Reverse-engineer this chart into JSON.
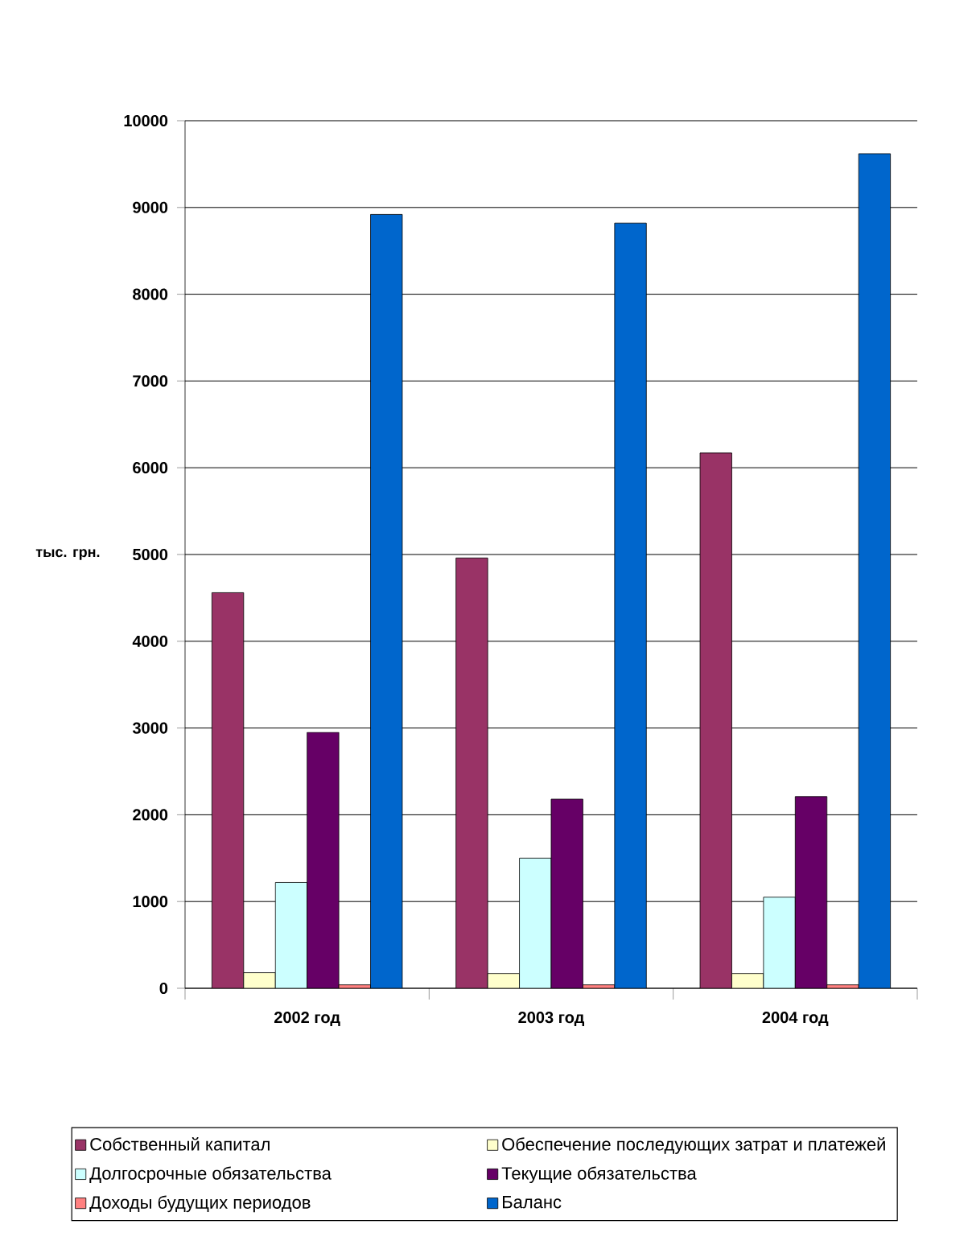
{
  "chart_data": {
    "type": "bar",
    "ylabel": "тыс. грн.",
    "categories": [
      "2002 год",
      "2003 год",
      "2004 год"
    ],
    "series": [
      {
        "name": "Собственный капитал",
        "color": "#993366",
        "values": [
          4560,
          4960,
          6170
        ]
      },
      {
        "name": "Обеспечение последующих затрат и платежей",
        "color": "#FFFFCC",
        "values": [
          180,
          170,
          170
        ]
      },
      {
        "name": "Долгосрочные обязательства",
        "color": "#CCFFFF",
        "values": [
          1220,
          1500,
          1050
        ]
      },
      {
        "name": "Текущие обязательства",
        "color": "#660066",
        "values": [
          2950,
          2180,
          2210
        ]
      },
      {
        "name": "Доходы будущих периодов",
        "color": "#FF8080",
        "values": [
          40,
          40,
          40
        ]
      },
      {
        "name": "Баланс",
        "color": "#0066CC",
        "values": [
          8920,
          8820,
          9620
        ]
      }
    ],
    "ylim": [
      0,
      10000
    ],
    "yticks": [
      0,
      1000,
      2000,
      3000,
      4000,
      5000,
      6000,
      7000,
      8000,
      9000,
      10000
    ],
    "grid": "y",
    "legend": "bottom"
  }
}
